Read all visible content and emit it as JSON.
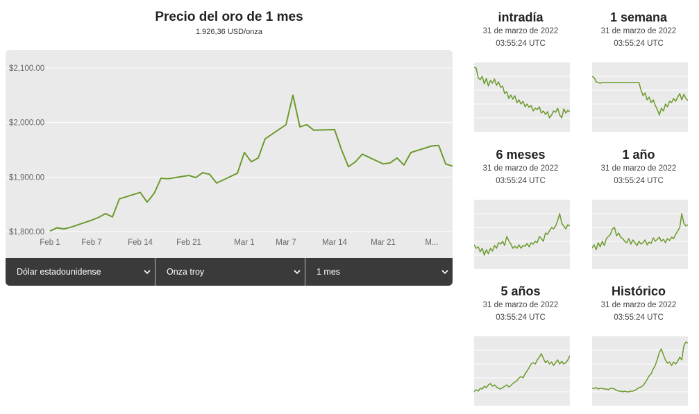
{
  "main": {
    "title": "Precio del oro de 1 mes",
    "subtitle": "1.926,36 USD/onza"
  },
  "chart_data": {
    "type": "line",
    "title": "Precio del oro de 1 mes",
    "subtitle": "1.926,36 USD/onza",
    "x_tick_labels": [
      "Feb 1",
      "Feb 7",
      "Feb 14",
      "Feb 21",
      "Mar 1",
      "Mar 7",
      "Mar 14",
      "Mar 21",
      "M..."
    ],
    "y_tick_labels": [
      "$2,100.00",
      "$2,000.00",
      "$1,900.00",
      "$1,800.00"
    ],
    "y_ticks": [
      2100,
      2000,
      1900,
      1800
    ],
    "ylim": [
      1800,
      2133
    ],
    "xlim": [
      "2022-02-01",
      "2022-03-31"
    ],
    "grid": true,
    "line_color": "#6b9a2c",
    "series": [
      {
        "x": [
          "2022-02-01",
          "2022-02-02",
          "2022-02-03",
          "2022-02-04",
          "2022-02-07",
          "2022-02-08",
          "2022-02-09",
          "2022-02-10",
          "2022-02-11",
          "2022-02-14",
          "2022-02-15",
          "2022-02-16",
          "2022-02-17",
          "2022-02-18",
          "2022-02-21",
          "2022-02-22",
          "2022-02-23",
          "2022-02-24",
          "2022-02-25",
          "2022-02-28",
          "2022-03-01",
          "2022-03-02",
          "2022-03-03",
          "2022-03-04",
          "2022-03-07",
          "2022-03-08",
          "2022-03-09",
          "2022-03-10",
          "2022-03-11",
          "2022-03-14",
          "2022-03-15",
          "2022-03-16",
          "2022-03-17",
          "2022-03-18",
          "2022-03-21",
          "2022-03-22",
          "2022-03-23",
          "2022-03-24",
          "2022-03-25",
          "2022-03-28",
          "2022-03-29",
          "2022-03-30",
          "2022-03-31"
        ],
        "y": [
          1801,
          1807,
          1805,
          1808,
          1821,
          1826,
          1833,
          1827,
          1860,
          1872,
          1854,
          1870,
          1898,
          1897,
          1903,
          1899,
          1908,
          1905,
          1889,
          1907,
          1945,
          1928,
          1935,
          1970,
          1996,
          2050,
          1992,
          1996,
          1986,
          1987,
          1950,
          1919,
          1928,
          1942,
          1924,
          1926,
          1935,
          1922,
          1945,
          1957,
          1958,
          1924,
          1920
        ]
      }
    ]
  },
  "selectors": [
    {
      "label": "Dólar estadounidense"
    },
    {
      "label": "Onza troy"
    },
    {
      "label": "1 mes"
    }
  ],
  "mini_charts": [
    {
      "title": "intradía",
      "date": "31 de marzo de 2022",
      "time": "03:55:24 UTC",
      "values": [
        0.93,
        0.92,
        0.78,
        0.75,
        0.8,
        0.69,
        0.77,
        0.66,
        0.74,
        0.7,
        0.76,
        0.67,
        0.72,
        0.64,
        0.66,
        0.55,
        0.58,
        0.48,
        0.53,
        0.47,
        0.52,
        0.42,
        0.46,
        0.4,
        0.44,
        0.36,
        0.4,
        0.35,
        0.38,
        0.3,
        0.34,
        0.32,
        0.36,
        0.27,
        0.3,
        0.25,
        0.29,
        0.2,
        0.24,
        0.3,
        0.28,
        0.34,
        0.24,
        0.2,
        0.33,
        0.27,
        0.31,
        0.29
      ]
    },
    {
      "title": "1 semana",
      "date": "31 de marzo de 2022",
      "time": "03:55:24 UTC",
      "values": [
        0.8,
        0.78,
        0.72,
        0.71,
        0.7,
        0.71,
        0.71,
        0.71,
        0.71,
        0.71,
        0.71,
        0.71,
        0.71,
        0.71,
        0.71,
        0.71,
        0.71,
        0.71,
        0.71,
        0.71,
        0.71,
        0.71,
        0.71,
        0.71,
        0.6,
        0.52,
        0.56,
        0.46,
        0.5,
        0.42,
        0.46,
        0.38,
        0.32,
        0.24,
        0.34,
        0.3,
        0.4,
        0.36,
        0.44,
        0.42,
        0.48,
        0.44,
        0.5,
        0.55,
        0.46,
        0.54,
        0.48,
        0.45
      ]
    },
    {
      "title": "6 meses",
      "date": "31 de marzo de 2022",
      "time": "03:55:24 UTC",
      "values": [
        0.35,
        0.3,
        0.32,
        0.25,
        0.3,
        0.2,
        0.28,
        0.22,
        0.3,
        0.26,
        0.34,
        0.3,
        0.38,
        0.36,
        0.4,
        0.34,
        0.47,
        0.41,
        0.36,
        0.3,
        0.33,
        0.3,
        0.35,
        0.3,
        0.34,
        0.33,
        0.37,
        0.32,
        0.38,
        0.36,
        0.4,
        0.38,
        0.47,
        0.44,
        0.4,
        0.52,
        0.5,
        0.55,
        0.6,
        0.58,
        0.62,
        0.7,
        0.8,
        0.66,
        0.62,
        0.58,
        0.64,
        0.62
      ]
    },
    {
      "title": "1 año",
      "date": "31 de marzo de 2022",
      "time": "03:55:24 UTC",
      "values": [
        0.3,
        0.35,
        0.28,
        0.38,
        0.32,
        0.4,
        0.34,
        0.44,
        0.47,
        0.5,
        0.58,
        0.6,
        0.48,
        0.52,
        0.46,
        0.44,
        0.4,
        0.38,
        0.44,
        0.36,
        0.42,
        0.38,
        0.34,
        0.4,
        0.36,
        0.38,
        0.42,
        0.35,
        0.39,
        0.37,
        0.45,
        0.4,
        0.43,
        0.46,
        0.4,
        0.43,
        0.38,
        0.44,
        0.41,
        0.46,
        0.44,
        0.5,
        0.55,
        0.6,
        0.8,
        0.66,
        0.62,
        0.64
      ]
    },
    {
      "title": "5 años",
      "date": "31 de marzo de 2022",
      "time": "03:55:24 UTC",
      "values": [
        0.2,
        0.23,
        0.21,
        0.25,
        0.24,
        0.28,
        0.26,
        0.3,
        0.32,
        0.28,
        0.3,
        0.27,
        0.25,
        0.24,
        0.26,
        0.28,
        0.3,
        0.27,
        0.29,
        0.32,
        0.34,
        0.36,
        0.4,
        0.42,
        0.4,
        0.46,
        0.5,
        0.55,
        0.6,
        0.62,
        0.6,
        0.66,
        0.7,
        0.75,
        0.68,
        0.62,
        0.65,
        0.6,
        0.63,
        0.58,
        0.62,
        0.66,
        0.6,
        0.64,
        0.6,
        0.62,
        0.66,
        0.72
      ]
    },
    {
      "title": "Histórico",
      "date": "31 de marzo de 2022",
      "time": "03:55:24 UTC",
      "values": [
        0.25,
        0.25,
        0.26,
        0.24,
        0.25,
        0.25,
        0.24,
        0.24,
        0.23,
        0.25,
        0.25,
        0.24,
        0.22,
        0.21,
        0.21,
        0.2,
        0.21,
        0.2,
        0.2,
        0.21,
        0.21,
        0.22,
        0.24,
        0.26,
        0.27,
        0.29,
        0.33,
        0.38,
        0.43,
        0.46,
        0.53,
        0.58,
        0.67,
        0.77,
        0.82,
        0.73,
        0.66,
        0.61,
        0.63,
        0.58,
        0.63,
        0.6,
        0.64,
        0.7,
        0.66,
        0.86,
        0.92,
        0.9
      ]
    }
  ]
}
